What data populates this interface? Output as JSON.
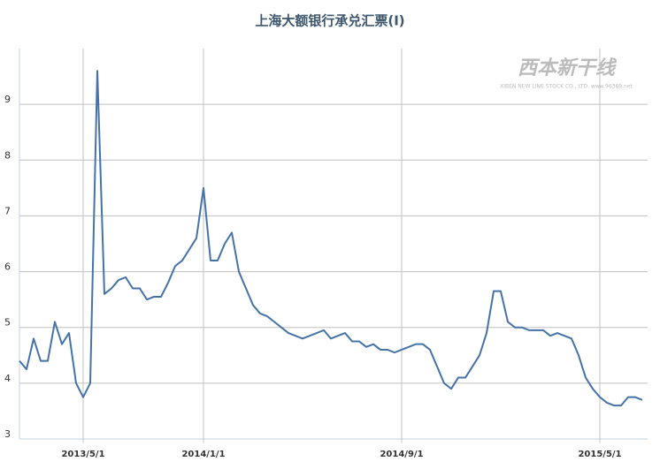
{
  "chart_data": {
    "type": "line",
    "title": "上海大额银行承兑汇票(Ⅰ)",
    "watermark": "西本新干线",
    "watermark_sub": "XIBEN NEW LINE STOCK CO., LTD.  www.96369.net",
    "categories": [
      null,
      null,
      null,
      null,
      null,
      null,
      null,
      null,
      null,
      "2013/5/1",
      null,
      null,
      null,
      null,
      null,
      null,
      null,
      null,
      null,
      null,
      null,
      null,
      null,
      null,
      null,
      null,
      "2014/1/1",
      null,
      null,
      null,
      null,
      null,
      null,
      null,
      null,
      null,
      null,
      null,
      null,
      null,
      null,
      null,
      null,
      null,
      null,
      null,
      null,
      null,
      null,
      null,
      null,
      null,
      null,
      null,
      "2014/9/1",
      null,
      null,
      null,
      null,
      null,
      null,
      null,
      null,
      null,
      null,
      null,
      null,
      null,
      null,
      null,
      null,
      null,
      null,
      null,
      null,
      null,
      null,
      null,
      null,
      null,
      null,
      null,
      "2015/5/1",
      null,
      null,
      null,
      null,
      null,
      null
    ],
    "series": [
      {
        "name": "上海大额银行承兑汇票(Ⅰ)",
        "color": "#4572a7",
        "values": [
          4.4,
          4.25,
          4.8,
          4.4,
          4.4,
          5.1,
          4.7,
          4.9,
          4.0,
          3.75,
          4.0,
          9.6,
          5.6,
          5.7,
          5.85,
          5.9,
          5.7,
          5.7,
          5.5,
          5.55,
          5.55,
          5.8,
          6.1,
          6.2,
          6.4,
          6.6,
          7.5,
          6.2,
          6.2,
          6.5,
          6.7,
          6.0,
          5.7,
          5.4,
          5.25,
          5.2,
          5.1,
          5.0,
          4.9,
          4.85,
          4.8,
          4.85,
          4.9,
          4.95,
          4.8,
          4.85,
          4.9,
          4.75,
          4.75,
          4.65,
          4.7,
          4.6,
          4.6,
          4.55,
          4.6,
          4.65,
          4.7,
          4.7,
          4.6,
          4.3,
          4.0,
          3.9,
          4.1,
          4.1,
          4.3,
          4.5,
          4.9,
          5.65,
          5.65,
          5.1,
          5.0,
          5.0,
          4.95,
          4.95,
          4.95,
          4.85,
          4.9,
          4.85,
          4.8,
          4.5,
          4.1,
          3.9,
          3.75,
          3.65,
          3.6,
          3.6,
          3.75,
          3.75,
          3.7
        ]
      }
    ],
    "ylim": [
      3,
      10
    ],
    "yticks": [
      3,
      4,
      5,
      6,
      7,
      8,
      9
    ],
    "grid": true
  }
}
